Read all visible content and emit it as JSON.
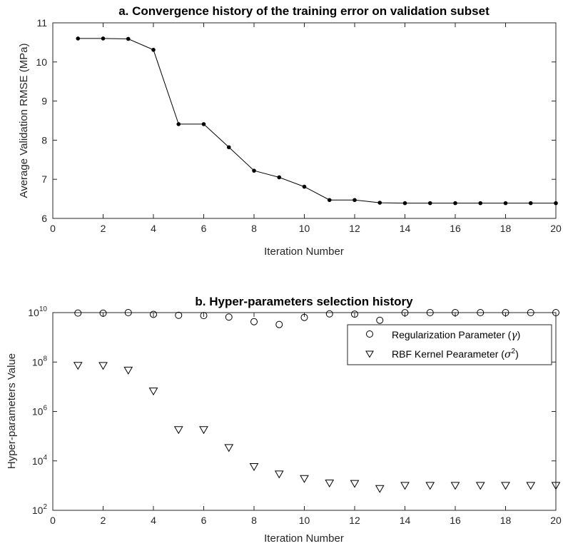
{
  "figure": {
    "background_color": "#ffffff",
    "axis_color": "#262626",
    "marker_color": "#000000"
  },
  "chart_data": [
    {
      "type": "line",
      "title": "a. Convergence history of the training error on validation subset",
      "xlabel": "Iteration Number",
      "ylabel": "Average Validation RMSE (MPa)",
      "xlim": [
        0,
        20
      ],
      "ylim": [
        6,
        11
      ],
      "x_ticks": [
        0,
        2,
        4,
        6,
        8,
        10,
        12,
        14,
        16,
        18,
        20
      ],
      "x_tick_labels": [
        "0",
        "2",
        "4",
        "6",
        "8",
        "10",
        "12",
        "14",
        "16",
        "18",
        "20"
      ],
      "y_ticks": [
        6,
        7,
        8,
        9,
        10,
        11
      ],
      "y_tick_labels": [
        "6",
        "7",
        "8",
        "9",
        "10",
        "11"
      ],
      "grid": false,
      "marker": "filled-circle",
      "series": [
        {
          "x": [
            1,
            2,
            3,
            4,
            5,
            6,
            7,
            8,
            9,
            10,
            11,
            12,
            13,
            14,
            15,
            16,
            17,
            18,
            19,
            20
          ],
          "values": [
            10.6,
            10.6,
            10.59,
            10.31,
            8.41,
            8.41,
            7.82,
            7.22,
            7.05,
            6.81,
            6.47,
            6.47,
            6.4,
            6.39,
            6.39,
            6.39,
            6.39,
            6.39,
            6.39,
            6.39
          ]
        }
      ]
    },
    {
      "type": "scatter",
      "title": "b. Hyper-parameters selection history",
      "xlabel": "Iteration Number",
      "ylabel": "Hyper-parameters Value",
      "y_scale": "log",
      "xlim": [
        0,
        20
      ],
      "ylim": [
        100,
        10000000000
      ],
      "x_ticks": [
        0,
        2,
        4,
        6,
        8,
        10,
        12,
        14,
        16,
        18,
        20
      ],
      "x_tick_labels": [
        "0",
        "2",
        "4",
        "6",
        "8",
        "10",
        "12",
        "14",
        "16",
        "18",
        "20"
      ],
      "y_ticks": [
        100,
        10000,
        1000000,
        100000000,
        10000000000
      ],
      "y_tick_labels": [
        {
          "base": "10",
          "exp": "2"
        },
        {
          "base": "10",
          "exp": "4"
        },
        {
          "base": "10",
          "exp": "6"
        },
        {
          "base": "10",
          "exp": "8"
        },
        {
          "base": "10",
          "exp": "10"
        }
      ],
      "grid": false,
      "legend_position": "top-right",
      "series": [
        {
          "name": "Regularization Parameter (γ)",
          "legend": {
            "text": "Regularization Parameter (",
            "symbol": "γ",
            "close": ")"
          },
          "marker": "open-circle",
          "x": [
            1,
            2,
            3,
            4,
            5,
            6,
            7,
            8,
            9,
            10,
            11,
            12,
            13,
            14,
            15,
            16,
            17,
            18,
            19,
            20
          ],
          "values": [
            9600000000,
            9500000000,
            10000000000,
            8500000000,
            7800000000,
            7600000000,
            6600000000,
            4300000000,
            3300000000,
            6400000000,
            8900000000,
            8700000000,
            4900000000,
            9900000000,
            10000000000,
            10000000000,
            10000000000,
            10000000000,
            10000000000,
            10000000000
          ]
        },
        {
          "name": "RBF Kernel Pearameter (σ²)",
          "legend": {
            "text": "RBF Kernel Pearameter (",
            "symbol": "σ",
            "sup": "2",
            "close": ")"
          },
          "marker": "open-triangle-down",
          "x": [
            1,
            2,
            3,
            4,
            5,
            6,
            7,
            8,
            9,
            10,
            11,
            12,
            13,
            14,
            15,
            16,
            17,
            18,
            19,
            20
          ],
          "values": [
            72000000,
            71000000,
            46000000,
            6600000,
            180000,
            180000,
            34000,
            5800,
            2900,
            1900,
            1250,
            1200,
            750,
            1000,
            1000,
            1000,
            1000,
            1000,
            1000,
            1000
          ]
        }
      ]
    }
  ]
}
